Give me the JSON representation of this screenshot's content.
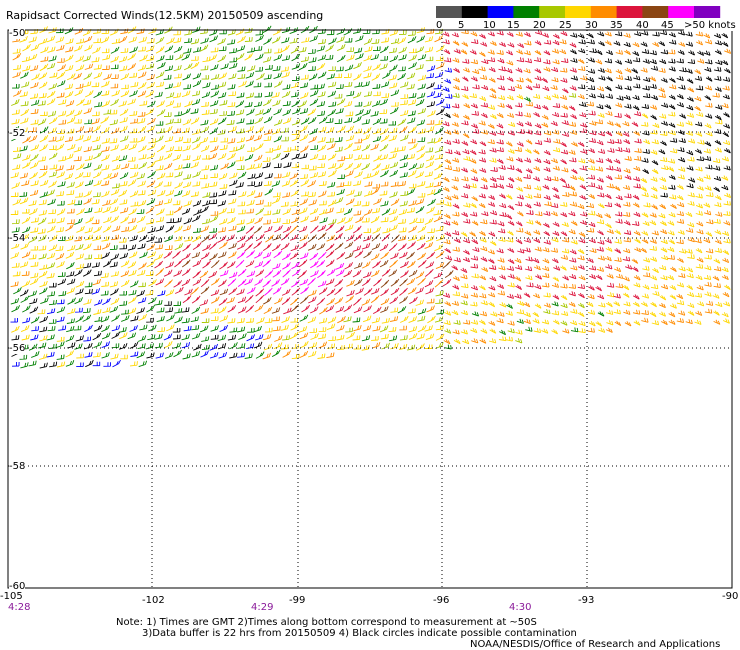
{
  "title": "Rapidsact Corrected Winds(12.5KM) 20150509 ascending",
  "legend": {
    "units_label": ">50 knots",
    "labels": [
      "0",
      "5",
      "10",
      "15",
      "20",
      "25",
      "30",
      "35",
      "40",
      "45"
    ],
    "colors": [
      "#555555",
      "#000000",
      "#0000ff",
      "#008000",
      "#a8c800",
      "#ffd700",
      "#ff8c00",
      "#dc143c",
      "#8b4513",
      "#ff00ff",
      "#8000c0"
    ]
  },
  "axes": {
    "lon_labels": [
      "-105",
      "-102",
      "-99",
      "-96",
      "-93",
      "-90"
    ],
    "lat_labels": [
      "-50",
      "-52",
      "-54",
      "-56",
      "-58",
      "-60"
    ]
  },
  "times": [
    "4:28",
    "4:29",
    "4:30"
  ],
  "notes": {
    "line1": "Note: 1) Times are GMT 2)Times along bottom correspond to measurement at ~50S",
    "line2": "3)Data buffer is 22 hrs from 20150509 4) Black circles indicate possible contamination",
    "line3": "NOAA/NESDIS/Office of Research and Applications"
  }
}
